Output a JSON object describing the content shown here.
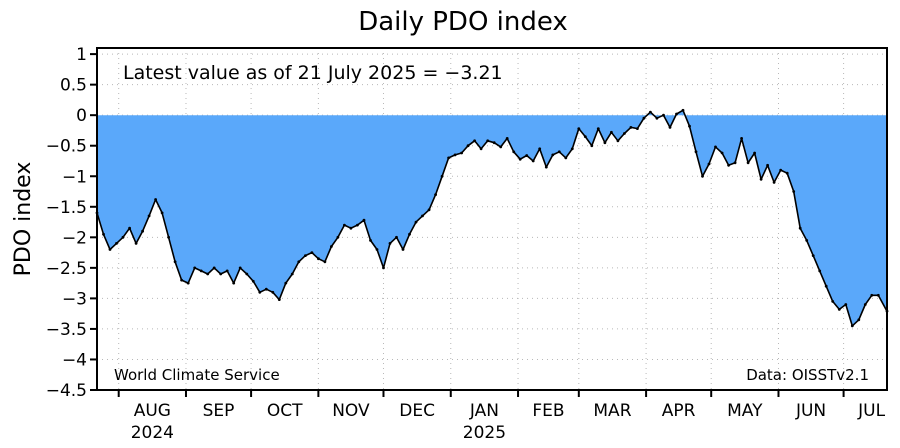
{
  "chart_data": {
    "type": "area",
    "title": "Daily PDO index",
    "ylabel": "PDO index",
    "xlabel": "",
    "annotation": "Latest value as of 21 July 2025 = −3.21",
    "credit_left": "World Climate Service",
    "credit_right": "Data: OISSTv2.1",
    "ylim": [
      -4.5,
      1.1
    ],
    "yticks": [
      1,
      0.5,
      0,
      -0.5,
      -1,
      -1.5,
      -2,
      -2.5,
      -3,
      -3.5,
      -4,
      -4.5
    ],
    "x_start": "2024-07-22",
    "x_end": "2025-07-21",
    "month_ticks": [
      {
        "date": "2024-08-01",
        "label": "AUG",
        "year": "2024"
      },
      {
        "date": "2024-09-01",
        "label": "SEP",
        "year": ""
      },
      {
        "date": "2024-10-01",
        "label": "OCT",
        "year": ""
      },
      {
        "date": "2024-11-01",
        "label": "NOV",
        "year": ""
      },
      {
        "date": "2024-12-01",
        "label": "DEC",
        "year": ""
      },
      {
        "date": "2025-01-01",
        "label": "JAN",
        "year": "2025"
      },
      {
        "date": "2025-02-01",
        "label": "FEB",
        "year": ""
      },
      {
        "date": "2025-03-01",
        "label": "MAR",
        "year": ""
      },
      {
        "date": "2025-04-01",
        "label": "APR",
        "year": ""
      },
      {
        "date": "2025-05-01",
        "label": "MAY",
        "year": ""
      },
      {
        "date": "2025-06-01",
        "label": "JUN",
        "year": ""
      },
      {
        "date": "2025-07-01",
        "label": "JUL",
        "year": ""
      }
    ],
    "fill_color": "#5aa8fa",
    "line_color": "#000000",
    "grid": true,
    "series": [
      {
        "x": [
          "2024-07-22",
          "2024-07-25",
          "2024-07-28",
          "2024-07-31",
          "2024-08-03",
          "2024-08-06",
          "2024-08-09",
          "2024-08-12",
          "2024-08-15",
          "2024-08-18",
          "2024-08-21",
          "2024-08-24",
          "2024-08-27",
          "2024-08-30",
          "2024-09-02",
          "2024-09-05",
          "2024-09-08",
          "2024-09-11",
          "2024-09-14",
          "2024-09-17",
          "2024-09-20",
          "2024-09-23",
          "2024-09-26",
          "2024-09-29",
          "2024-10-02",
          "2024-10-05",
          "2024-10-08",
          "2024-10-11",
          "2024-10-14",
          "2024-10-17",
          "2024-10-20",
          "2024-10-23",
          "2024-10-26",
          "2024-10-29",
          "2024-11-01",
          "2024-11-04",
          "2024-11-07",
          "2024-11-10",
          "2024-11-13",
          "2024-11-16",
          "2024-11-19",
          "2024-11-22",
          "2024-11-25",
          "2024-11-28",
          "2024-12-01",
          "2024-12-04",
          "2024-12-07",
          "2024-12-10",
          "2024-12-13",
          "2024-12-16",
          "2024-12-19",
          "2024-12-22",
          "2024-12-25",
          "2024-12-28",
          "2024-12-31",
          "2025-01-03",
          "2025-01-06",
          "2025-01-09",
          "2025-01-12",
          "2025-01-15",
          "2025-01-18",
          "2025-01-21",
          "2025-01-24",
          "2025-01-27",
          "2025-01-30",
          "2025-02-02",
          "2025-02-05",
          "2025-02-08",
          "2025-02-11",
          "2025-02-14",
          "2025-02-17",
          "2025-02-20",
          "2025-02-23",
          "2025-02-26",
          "2025-03-01",
          "2025-03-04",
          "2025-03-07",
          "2025-03-10",
          "2025-03-13",
          "2025-03-16",
          "2025-03-19",
          "2025-03-22",
          "2025-03-25",
          "2025-03-28",
          "2025-03-31",
          "2025-04-03",
          "2025-04-06",
          "2025-04-09",
          "2025-04-12",
          "2025-04-15",
          "2025-04-18",
          "2025-04-21",
          "2025-04-24",
          "2025-04-27",
          "2025-04-30",
          "2025-05-03",
          "2025-05-06",
          "2025-05-09",
          "2025-05-12",
          "2025-05-15",
          "2025-05-18",
          "2025-05-21",
          "2025-05-24",
          "2025-05-27",
          "2025-05-30",
          "2025-06-02",
          "2025-06-05",
          "2025-06-08",
          "2025-06-11",
          "2025-06-14",
          "2025-06-17",
          "2025-06-20",
          "2025-06-23",
          "2025-06-26",
          "2025-06-29",
          "2025-07-02",
          "2025-07-05",
          "2025-07-08",
          "2025-07-11",
          "2025-07-14",
          "2025-07-17",
          "2025-07-21"
        ],
        "y": [
          -1.6,
          -1.95,
          -2.2,
          -2.1,
          -2.0,
          -1.85,
          -2.1,
          -1.9,
          -1.65,
          -1.38,
          -1.6,
          -2.0,
          -2.4,
          -2.7,
          -2.75,
          -2.5,
          -2.55,
          -2.6,
          -2.5,
          -2.6,
          -2.55,
          -2.75,
          -2.5,
          -2.6,
          -2.72,
          -2.9,
          -2.85,
          -2.9,
          -3.02,
          -2.75,
          -2.6,
          -2.4,
          -2.3,
          -2.25,
          -2.35,
          -2.4,
          -2.15,
          -2.0,
          -1.8,
          -1.85,
          -1.8,
          -1.72,
          -2.05,
          -2.2,
          -2.5,
          -2.1,
          -2.0,
          -2.2,
          -1.95,
          -1.75,
          -1.65,
          -1.55,
          -1.3,
          -1.0,
          -0.7,
          -0.65,
          -0.62,
          -0.5,
          -0.42,
          -0.55,
          -0.42,
          -0.45,
          -0.52,
          -0.38,
          -0.6,
          -0.72,
          -0.66,
          -0.75,
          -0.55,
          -0.85,
          -0.65,
          -0.6,
          -0.7,
          -0.55,
          -0.22,
          -0.35,
          -0.5,
          -0.22,
          -0.45,
          -0.28,
          -0.42,
          -0.3,
          -0.2,
          -0.22,
          -0.05,
          0.05,
          -0.05,
          0.0,
          -0.2,
          0.02,
          0.08,
          -0.18,
          -0.6,
          -1.0,
          -0.8,
          -0.52,
          -0.62,
          -0.82,
          -0.78,
          -0.38,
          -0.78,
          -0.62,
          -1.05,
          -0.82,
          -1.1,
          -0.9,
          -0.95,
          -1.25,
          -1.85,
          -2.05,
          -2.3,
          -2.55,
          -2.8,
          -3.05,
          -3.18,
          -3.1,
          -3.45,
          -3.35,
          -3.1,
          -2.95,
          -2.95,
          -3.21
        ]
      }
    ]
  }
}
